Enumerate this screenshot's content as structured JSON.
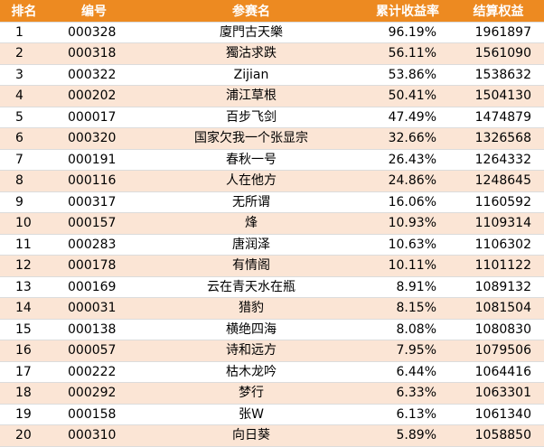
{
  "table": {
    "headers": {
      "rank": "排名",
      "code": "编号",
      "name": "参赛名",
      "return": "累计收益率",
      "equity": "结算权益"
    },
    "rows": [
      {
        "rank": "1",
        "code": "000328",
        "name": "廈門古天樂",
        "return": "96.19%",
        "equity": "1961897"
      },
      {
        "rank": "2",
        "code": "000318",
        "name": "獨沽求跌",
        "return": "56.11%",
        "equity": "1561090"
      },
      {
        "rank": "3",
        "code": "000322",
        "name": "Zijian",
        "return": "53.86%",
        "equity": "1538632"
      },
      {
        "rank": "4",
        "code": "000202",
        "name": "浦江草根",
        "return": "50.41%",
        "equity": "1504130"
      },
      {
        "rank": "5",
        "code": "000017",
        "name": "百步飞剑",
        "return": "47.49%",
        "equity": "1474879"
      },
      {
        "rank": "6",
        "code": "000320",
        "name": "国家欠我一个张显宗",
        "return": "32.66%",
        "equity": "1326568"
      },
      {
        "rank": "7",
        "code": "000191",
        "name": "春秋一号",
        "return": "26.43%",
        "equity": "1264332"
      },
      {
        "rank": "8",
        "code": "000116",
        "name": "人在他方",
        "return": "24.86%",
        "equity": "1248645"
      },
      {
        "rank": "9",
        "code": "000317",
        "name": "无所谓",
        "return": "16.06%",
        "equity": "1160592"
      },
      {
        "rank": "10",
        "code": "000157",
        "name": "烽",
        "return": "10.93%",
        "equity": "1109314"
      },
      {
        "rank": "11",
        "code": "000283",
        "name": "唐润泽",
        "return": "10.63%",
        "equity": "1106302"
      },
      {
        "rank": "12",
        "code": "000178",
        "name": "有情阁",
        "return": "10.11%",
        "equity": "1101122"
      },
      {
        "rank": "13",
        "code": "000169",
        "name": "云在青天水在瓶",
        "return": "8.91%",
        "equity": "1089132"
      },
      {
        "rank": "14",
        "code": "000031",
        "name": "猎豹",
        "return": "8.15%",
        "equity": "1081504"
      },
      {
        "rank": "15",
        "code": "000138",
        "name": "横绝四海",
        "return": "8.08%",
        "equity": "1080830"
      },
      {
        "rank": "16",
        "code": "000057",
        "name": "诗和远方",
        "return": "7.95%",
        "equity": "1079506"
      },
      {
        "rank": "17",
        "code": "000222",
        "name": "枯木龙吟",
        "return": "6.44%",
        "equity": "1064416"
      },
      {
        "rank": "18",
        "code": "000292",
        "name": "梦行",
        "return": "6.33%",
        "equity": "1063301"
      },
      {
        "rank": "19",
        "code": "000158",
        "name": "张W",
        "return": "6.13%",
        "equity": "1061340"
      },
      {
        "rank": "20",
        "code": "000310",
        "name": "向日葵",
        "return": "5.89%",
        "equity": "1058850"
      }
    ]
  },
  "colors": {
    "header_bg": "#ed8a21",
    "header_text": "#ffffff",
    "stripe_bg": "#fbe5d5"
  }
}
